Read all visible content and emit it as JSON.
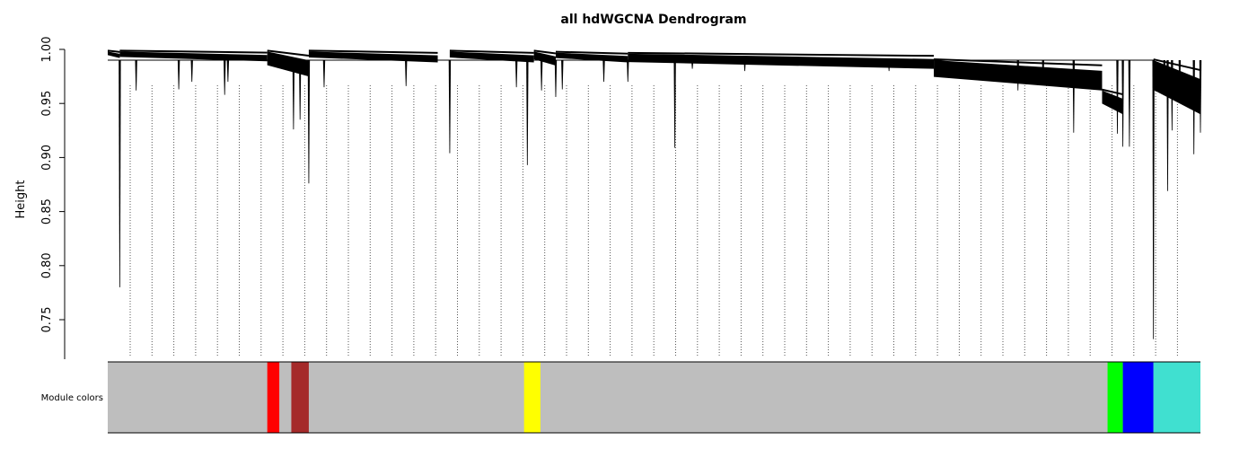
{
  "chart_data": {
    "type": "dendrogram",
    "title": "all hdWGCNA Dendrogram",
    "ylabel": "Height",
    "ylim": [
      0.71,
      1.0
    ],
    "yticks": [
      1.0,
      0.95,
      0.9,
      0.85,
      0.8,
      0.75
    ],
    "ytick_labels": [
      "1.00",
      "0.95",
      "0.90",
      "0.85",
      "0.80",
      "0.75"
    ],
    "color_row_label": "Module colors",
    "background_color": "#bebebe",
    "modules": [
      {
        "name": "red",
        "color": "#ff0000",
        "start": 0.146,
        "end": 0.157
      },
      {
        "name": "brown",
        "color": "#a52a2a",
        "start": 0.168,
        "end": 0.184
      },
      {
        "name": "yellow",
        "color": "#ffff00",
        "start": 0.381,
        "end": 0.396
      },
      {
        "name": "green",
        "color": "#00ff00",
        "start": 0.915,
        "end": 0.929
      },
      {
        "name": "blue",
        "color": "#0000ff",
        "start": 0.929,
        "end": 0.957
      },
      {
        "name": "turquoise",
        "color": "#40e0d0",
        "start": 0.957,
        "end": 1.0
      }
    ],
    "top_merge": {
      "height": 0.99,
      "x_left": 0.0,
      "x_right": 0.957
    },
    "branches": [
      {
        "x0": 0.0,
        "x1": 0.011,
        "top": 0.998,
        "bottom": 0.992
      },
      {
        "x0": 0.011,
        "x1": 0.146,
        "top": 0.998,
        "bottom": 0.989
      },
      {
        "x0": 0.146,
        "x1": 0.184,
        "top": 0.998,
        "bottom": 0.975
      },
      {
        "x0": 0.184,
        "x1": 0.302,
        "top": 0.998,
        "bottom": 0.988
      },
      {
        "x0": 0.313,
        "x1": 0.39,
        "top": 0.998,
        "bottom": 0.988
      },
      {
        "x0": 0.39,
        "x1": 0.41,
        "top": 0.998,
        "bottom": 0.985
      },
      {
        "x0": 0.41,
        "x1": 0.476,
        "top": 0.997,
        "bottom": 0.988
      },
      {
        "x0": 0.476,
        "x1": 0.756,
        "top": 0.996,
        "bottom": 0.982
      },
      {
        "x0": 0.756,
        "x1": 0.91,
        "top": 0.99,
        "bottom": 0.962
      },
      {
        "x0": 0.91,
        "x1": 0.929,
        "top": 0.962,
        "bottom": 0.94
      },
      {
        "x0": 0.957,
        "x1": 1.0,
        "top": 0.99,
        "bottom": 0.94
      }
    ],
    "spikes": [
      {
        "x": 0.011,
        "h": 0.78
      },
      {
        "x": 0.026,
        "h": 0.962
      },
      {
        "x": 0.065,
        "h": 0.963
      },
      {
        "x": 0.077,
        "h": 0.97
      },
      {
        "x": 0.107,
        "h": 0.958
      },
      {
        "x": 0.11,
        "h": 0.97
      },
      {
        "x": 0.17,
        "h": 0.926
      },
      {
        "x": 0.176,
        "h": 0.935
      },
      {
        "x": 0.184,
        "h": 0.876
      },
      {
        "x": 0.198,
        "h": 0.965
      },
      {
        "x": 0.273,
        "h": 0.966
      },
      {
        "x": 0.313,
        "h": 0.904
      },
      {
        "x": 0.374,
        "h": 0.965
      },
      {
        "x": 0.384,
        "h": 0.893
      },
      {
        "x": 0.397,
        "h": 0.962
      },
      {
        "x": 0.41,
        "h": 0.956
      },
      {
        "x": 0.416,
        "h": 0.963
      },
      {
        "x": 0.454,
        "h": 0.97
      },
      {
        "x": 0.476,
        "h": 0.97
      },
      {
        "x": 0.519,
        "h": 0.909
      },
      {
        "x": 0.535,
        "h": 0.982
      },
      {
        "x": 0.583,
        "h": 0.98
      },
      {
        "x": 0.715,
        "h": 0.98
      },
      {
        "x": 0.833,
        "h": 0.962
      },
      {
        "x": 0.856,
        "h": 0.97
      },
      {
        "x": 0.884,
        "h": 0.923
      },
      {
        "x": 0.924,
        "h": 0.922
      },
      {
        "x": 0.929,
        "h": 0.91
      },
      {
        "x": 0.935,
        "h": 0.91
      },
      {
        "x": 0.957,
        "h": 0.732
      },
      {
        "x": 0.967,
        "h": 0.97
      },
      {
        "x": 0.97,
        "h": 0.869
      },
      {
        "x": 0.974,
        "h": 0.925
      },
      {
        "x": 0.981,
        "h": 0.96
      },
      {
        "x": 0.994,
        "h": 0.903
      },
      {
        "x": 1.0,
        "h": 0.923
      }
    ]
  }
}
